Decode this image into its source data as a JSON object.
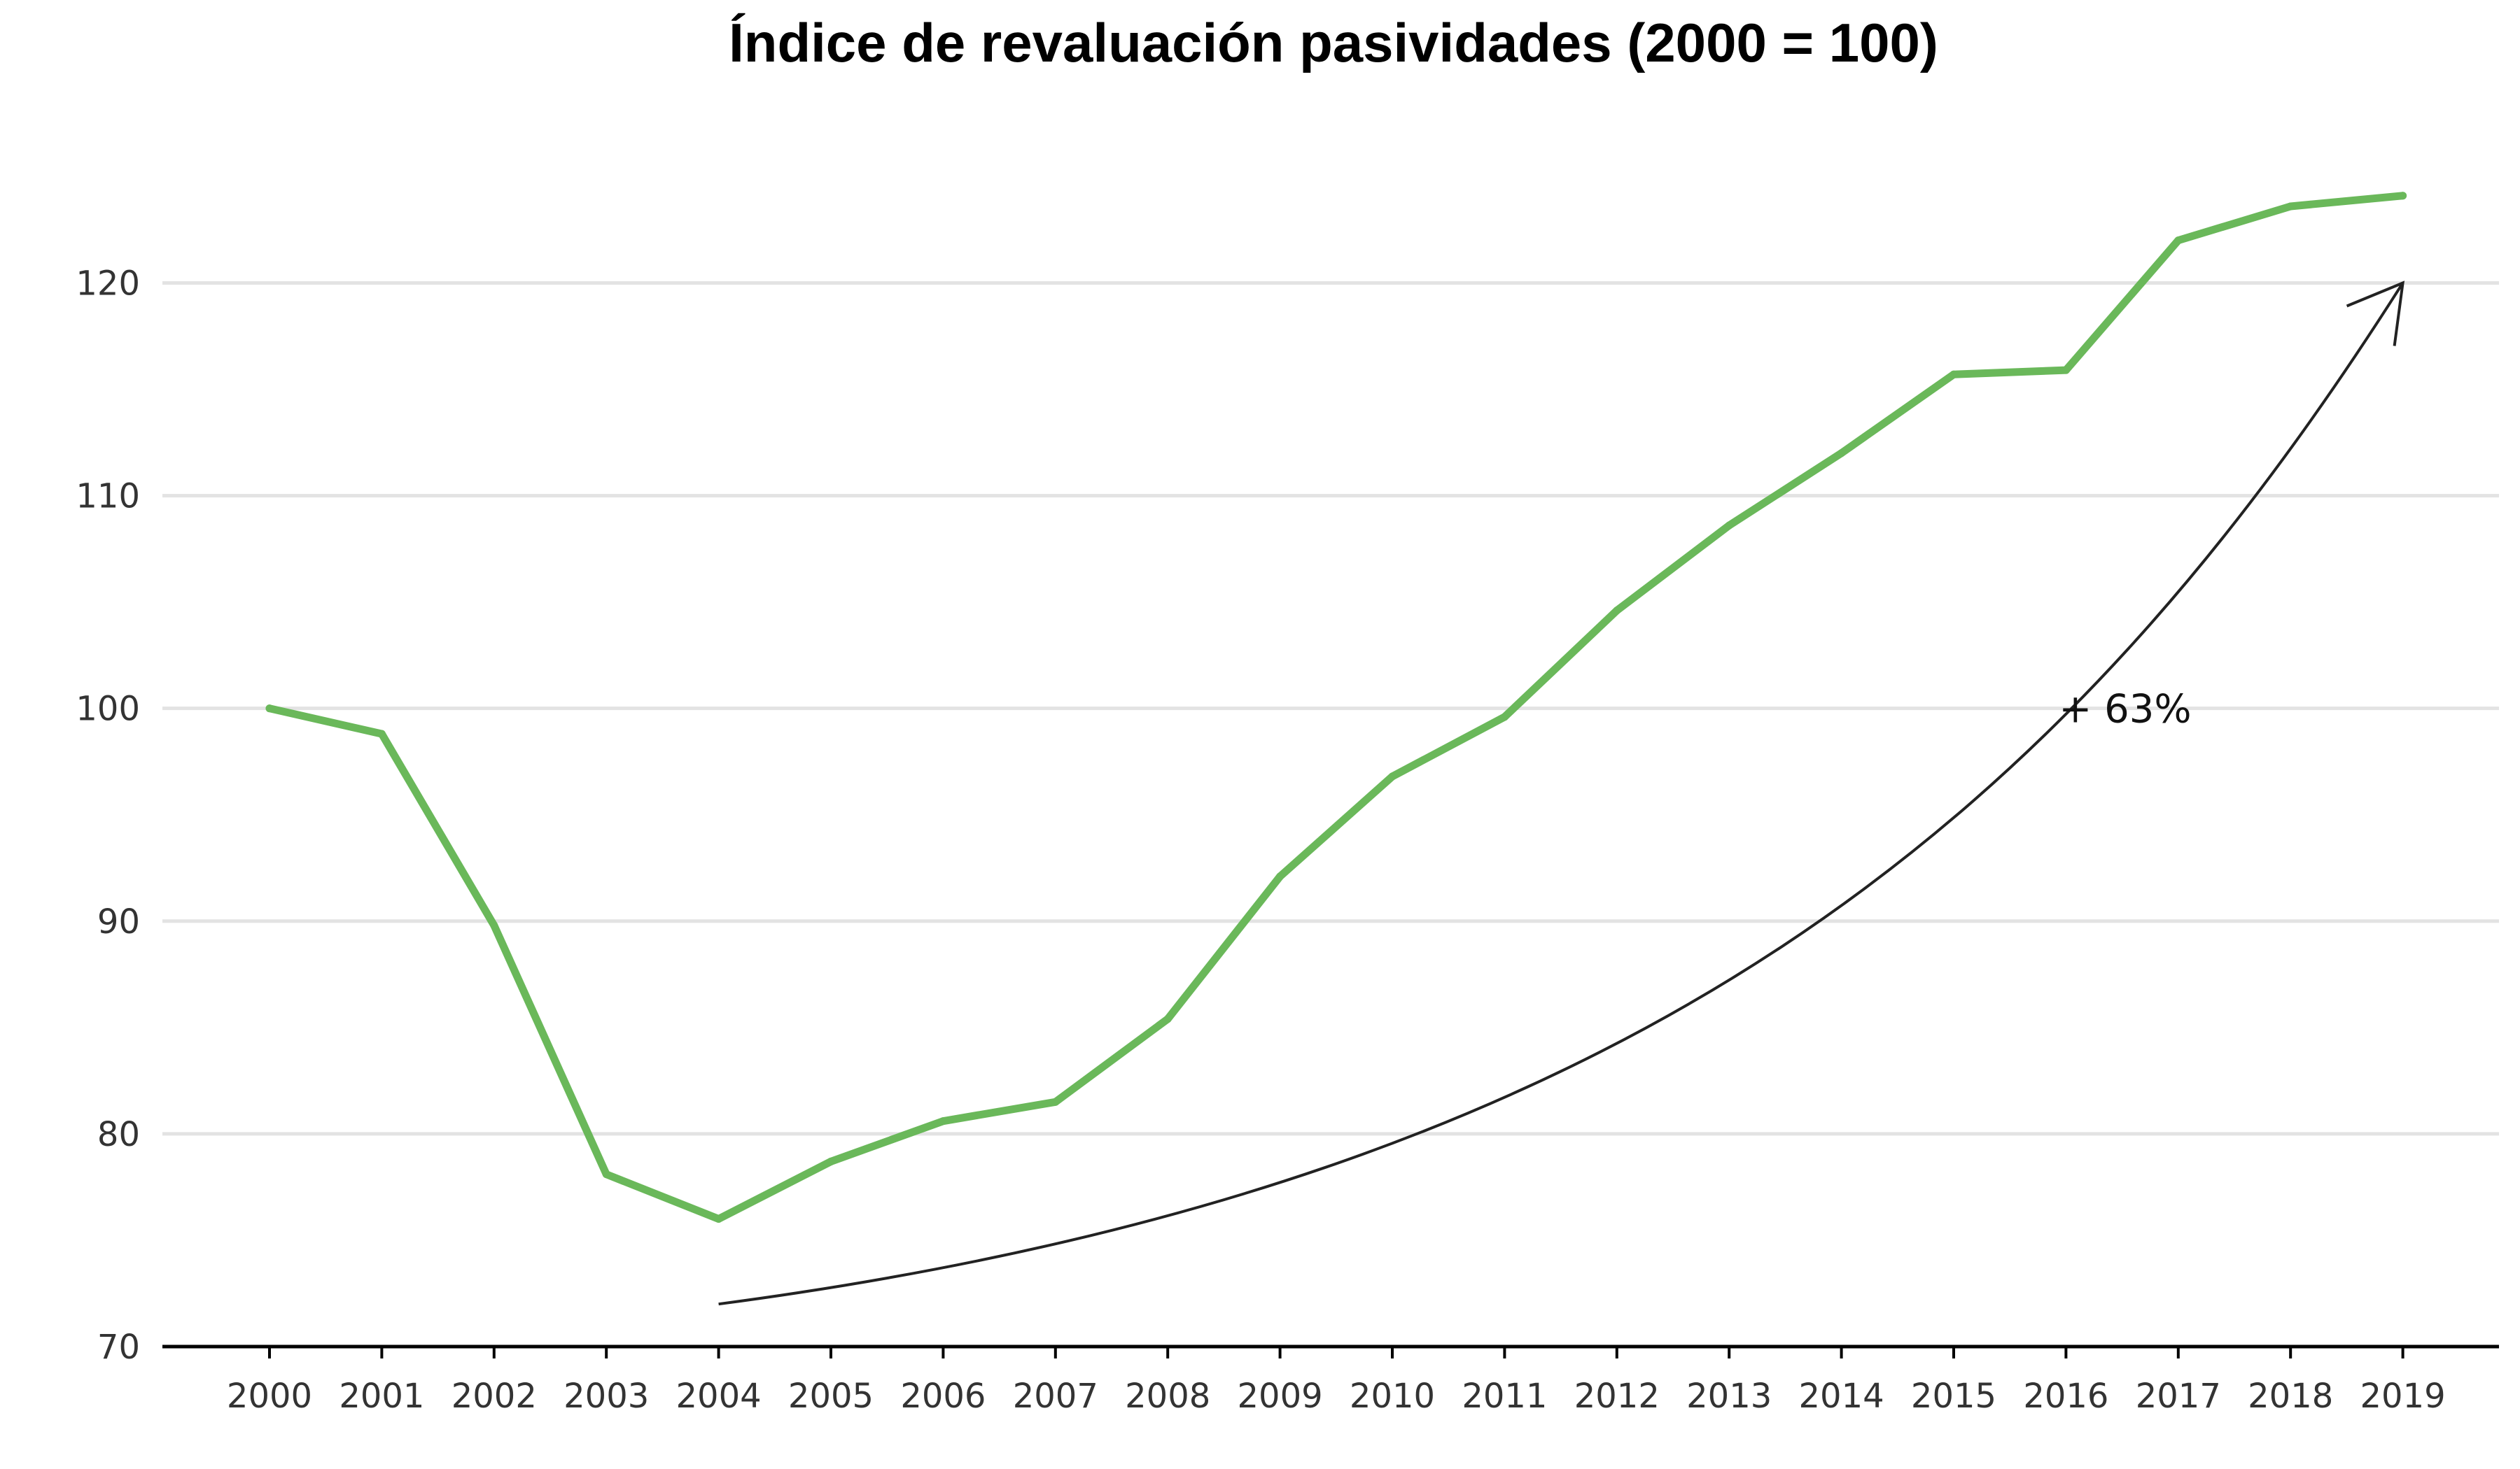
{
  "chart_data": {
    "type": "line",
    "title": "Índice de revaluación pasividades (2000 = 100)",
    "xlabel": "",
    "ylabel": "",
    "categories": [
      "2000",
      "2001",
      "2002",
      "2003",
      "2004",
      "2005",
      "2006",
      "2007",
      "2008",
      "2009",
      "2010",
      "2011",
      "2012",
      "2013",
      "2014",
      "2015",
      "2016",
      "2017",
      "2018",
      "2019"
    ],
    "series": [
      {
        "values": [
          100.0,
          98.8,
          89.8,
          78.1,
          76.0,
          78.7,
          80.6,
          81.5,
          85.4,
          92.1,
          96.8,
          99.6,
          104.6,
          108.6,
          112.0,
          115.7,
          115.9,
          122.0,
          123.6,
          124.1
        ],
        "color": "#6ab85a"
      }
    ],
    "ylim": [
      70,
      126
    ],
    "yticks": [
      "70",
      "80",
      "90",
      "100",
      "110",
      "120"
    ],
    "grid": true,
    "grid_color": "#e3e3e3",
    "axis_color": "#000000",
    "annotation": {
      "text": "+ 63%",
      "arrow_from": {
        "x": "2004",
        "y": 72
      },
      "arrow_to": {
        "x": "2019",
        "y": 120
      },
      "text_at": {
        "x": "2016",
        "y": 100
      },
      "color": "#222222"
    }
  }
}
